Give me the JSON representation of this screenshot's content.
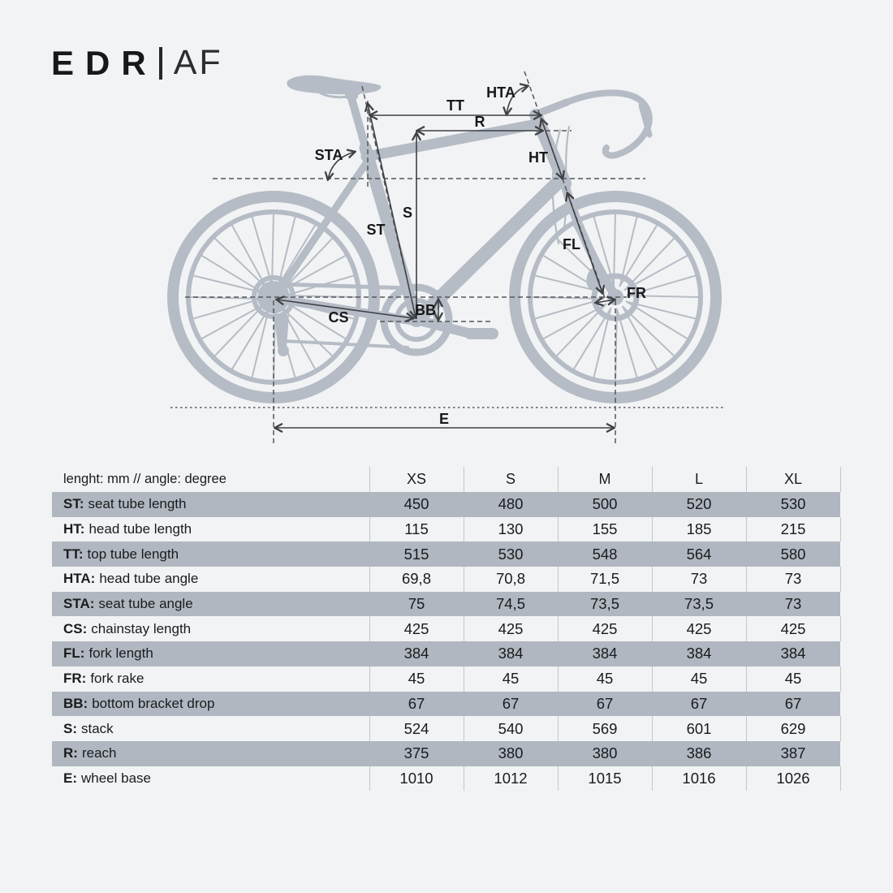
{
  "title": {
    "brand": "EDR",
    "separator": "|",
    "model": "AF"
  },
  "colors": {
    "background": "#f2f3f4",
    "bike_silhouette": "#b6bcc6",
    "table_row_shaded": "#b0b7c0",
    "annotation_line": "#3f4145",
    "text": "#17181a"
  },
  "diagram": {
    "labels": {
      "sta": "STA",
      "tt": "TT",
      "hta": "HTA",
      "r": "R",
      "ht": "HT",
      "s": "S",
      "st": "ST",
      "fl": "FL",
      "fr": "FR",
      "bb": "BB",
      "cs": "CS",
      "e": "E"
    }
  },
  "table": {
    "header": {
      "label": "lenght: mm // angle: degree",
      "sizes": [
        "XS",
        "S",
        "M",
        "L",
        "XL"
      ]
    },
    "rows": [
      {
        "abbr": "ST:",
        "desc": "seat tube length",
        "values": [
          "450",
          "480",
          "500",
          "520",
          "530"
        ],
        "shaded": true
      },
      {
        "abbr": "HT:",
        "desc": "head tube length",
        "values": [
          "115",
          "130",
          "155",
          "185",
          "215"
        ],
        "shaded": false
      },
      {
        "abbr": "TT:",
        "desc": "top tube length",
        "values": [
          "515",
          "530",
          "548",
          "564",
          "580"
        ],
        "shaded": true
      },
      {
        "abbr": "HTA:",
        "desc": "head tube angle",
        "values": [
          "69,8",
          "70,8",
          "71,5",
          "73",
          "73"
        ],
        "shaded": false
      },
      {
        "abbr": "STA:",
        "desc": "seat tube angle",
        "values": [
          "75",
          "74,5",
          "73,5",
          "73,5",
          "73"
        ],
        "shaded": true
      },
      {
        "abbr": "CS:",
        "desc": "chainstay length",
        "values": [
          "425",
          "425",
          "425",
          "425",
          "425"
        ],
        "shaded": false
      },
      {
        "abbr": "FL:",
        "desc": "fork length",
        "values": [
          "384",
          "384",
          "384",
          "384",
          "384"
        ],
        "shaded": true
      },
      {
        "abbr": "FR:",
        "desc": "fork rake",
        "values": [
          "45",
          "45",
          "45",
          "45",
          "45"
        ],
        "shaded": false
      },
      {
        "abbr": "BB:",
        "desc": "bottom bracket drop",
        "values": [
          "67",
          "67",
          "67",
          "67",
          "67"
        ],
        "shaded": true
      },
      {
        "abbr": "S:",
        "desc": "stack",
        "values": [
          "524",
          "540",
          "569",
          "601",
          "629"
        ],
        "shaded": false
      },
      {
        "abbr": "R:",
        "desc": "reach",
        "values": [
          "375",
          "380",
          "380",
          "386",
          "387"
        ],
        "shaded": true
      },
      {
        "abbr": "E:",
        "desc": "wheel base",
        "values": [
          "1010",
          "1012",
          "1015",
          "1016",
          "1026"
        ],
        "shaded": false
      }
    ]
  }
}
